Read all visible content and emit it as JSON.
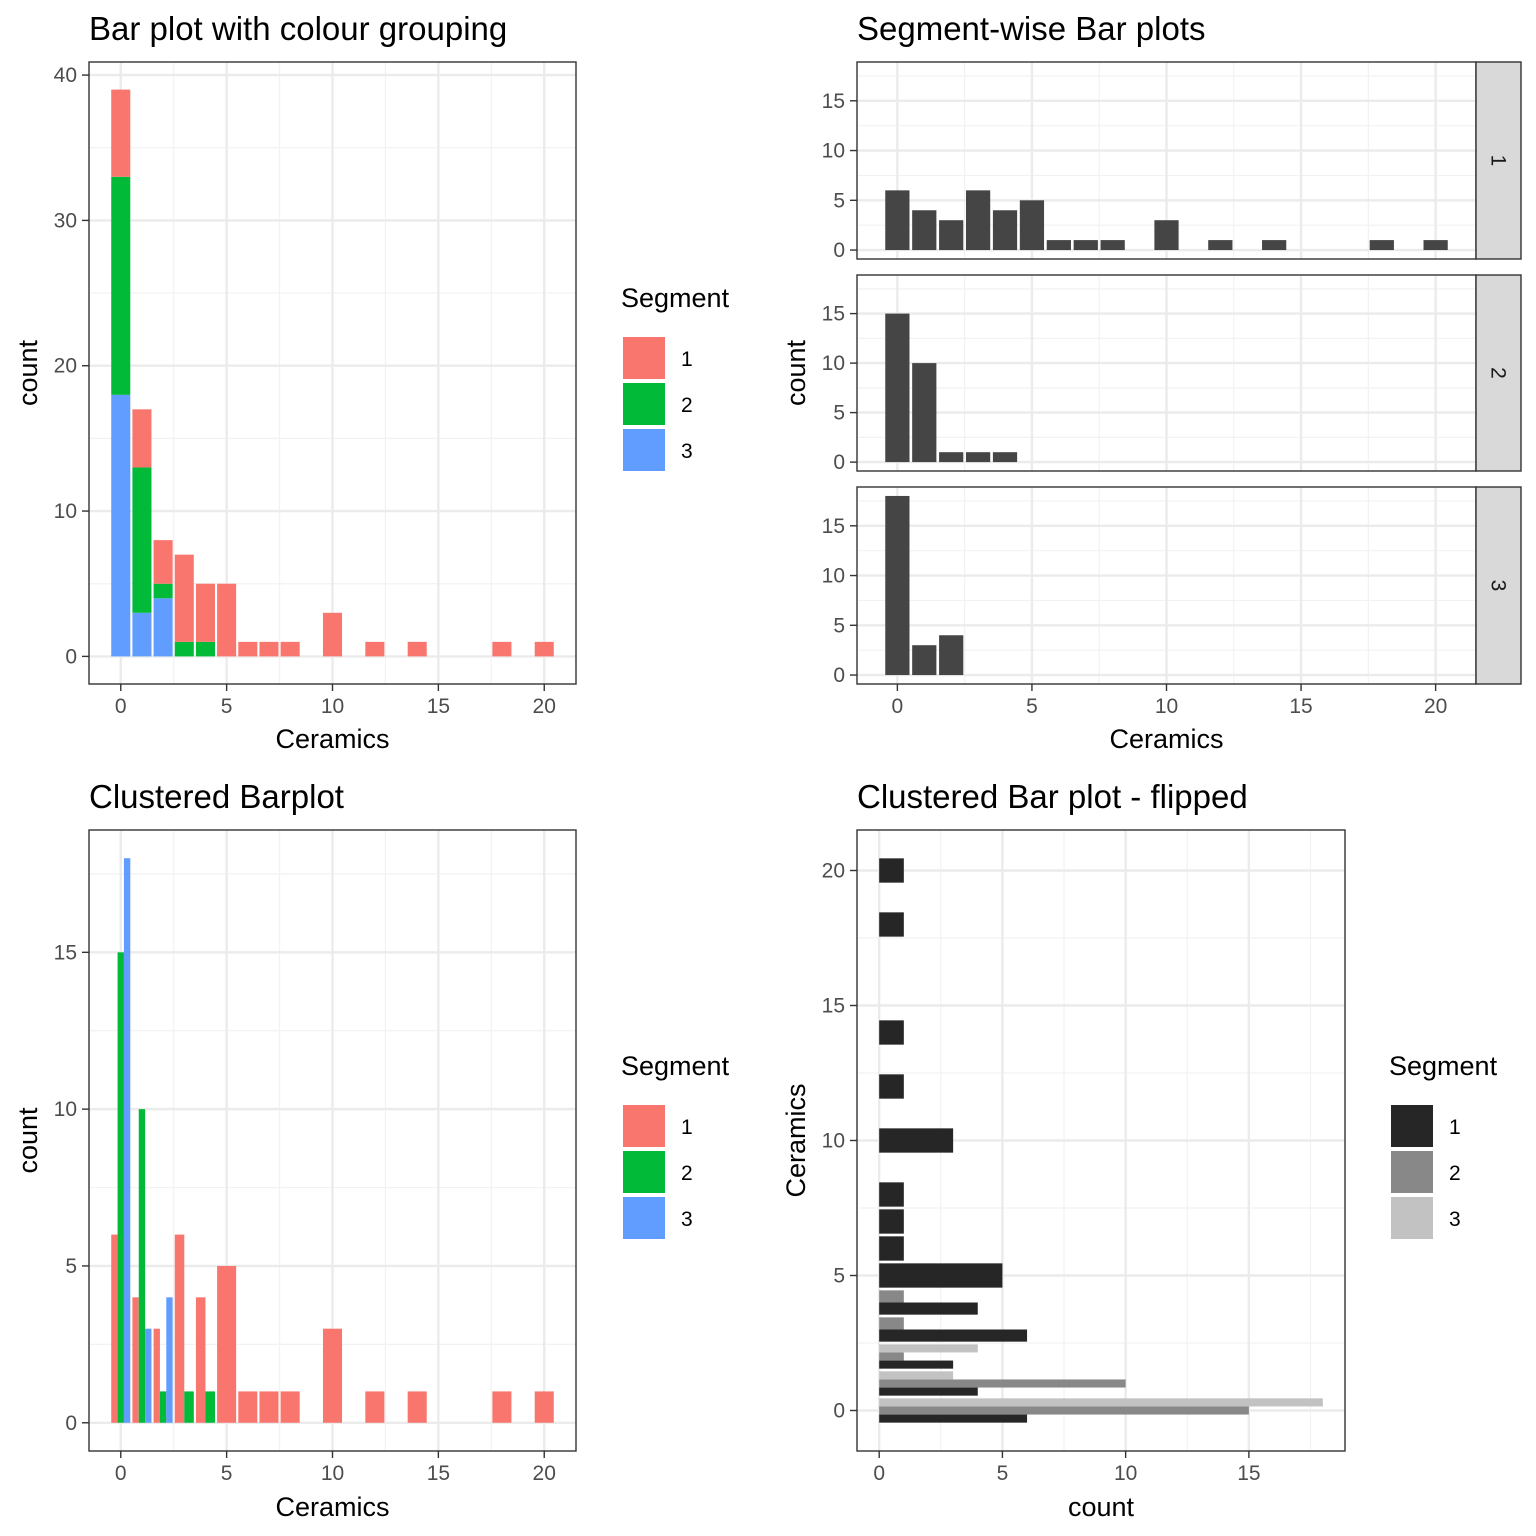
{
  "chart_data": [
    {
      "id": "p1",
      "type": "bar",
      "stacked": true,
      "title": "Bar plot with colour grouping",
      "xlabel": "Ceramics",
      "ylabel": "count",
      "xlim": [
        -1.5,
        21.5
      ],
      "ylim": [
        -1.9,
        40.9
      ],
      "x_ticks": [
        0,
        5,
        10,
        15,
        20
      ],
      "y_ticks": [
        0,
        10,
        20,
        30,
        40
      ],
      "grid": true,
      "legend": {
        "title": "Segment",
        "position": "right",
        "labels": [
          "1",
          "2",
          "3"
        ]
      },
      "colors": [
        "#F8766D",
        "#00BA38",
        "#619CFF"
      ],
      "x": [
        0,
        1,
        2,
        3,
        4,
        5,
        6,
        7,
        8,
        10,
        12,
        14,
        18,
        20
      ],
      "series": [
        {
          "name": "1",
          "values": [
            6,
            4,
            3,
            6,
            4,
            5,
            1,
            1,
            1,
            3,
            1,
            1,
            1,
            1
          ]
        },
        {
          "name": "2",
          "values": [
            15,
            10,
            1,
            1,
            1,
            0,
            0,
            0,
            0,
            0,
            0,
            0,
            0,
            0
          ]
        },
        {
          "name": "3",
          "values": [
            18,
            3,
            4,
            0,
            0,
            0,
            0,
            0,
            0,
            0,
            0,
            0,
            0,
            0
          ]
        }
      ]
    },
    {
      "id": "p2",
      "type": "bar",
      "faceted": true,
      "title": "Segment-wise Bar plots",
      "xlabel": "Ceramics",
      "ylabel": "count",
      "xlim": [
        -1.5,
        21.5
      ],
      "ylim": [
        -0.9,
        18.9
      ],
      "x_ticks": [
        0,
        5,
        10,
        15,
        20
      ],
      "y_ticks": [
        0,
        5,
        10,
        15
      ],
      "grid": true,
      "bar_color": "#454545",
      "facets": [
        {
          "label": "1",
          "x": [
            0,
            1,
            2,
            3,
            4,
            5,
            6,
            7,
            8,
            10,
            12,
            14,
            18,
            20
          ],
          "values": [
            6,
            4,
            3,
            6,
            4,
            5,
            1,
            1,
            1,
            3,
            1,
            1,
            1,
            1
          ]
        },
        {
          "label": "2",
          "x": [
            0,
            1,
            2,
            3,
            4
          ],
          "values": [
            15,
            10,
            1,
            1,
            1
          ]
        },
        {
          "label": "3",
          "x": [
            0,
            1,
            2
          ],
          "values": [
            18,
            3,
            4
          ]
        }
      ]
    },
    {
      "id": "p3",
      "type": "bar",
      "dodged": true,
      "title": "Clustered Barplot",
      "xlabel": "Ceramics",
      "ylabel": "count",
      "xlim": [
        -1.5,
        21.5
      ],
      "ylim": [
        -0.9,
        18.9
      ],
      "x_ticks": [
        0,
        5,
        10,
        15,
        20
      ],
      "y_ticks": [
        0,
        5,
        10,
        15
      ],
      "grid": true,
      "legend": {
        "title": "Segment",
        "position": "right",
        "labels": [
          "1",
          "2",
          "3"
        ]
      },
      "colors": [
        "#F8766D",
        "#00BA38",
        "#619CFF"
      ],
      "x": [
        0,
        1,
        2,
        3,
        4,
        5,
        6,
        7,
        8,
        10,
        12,
        14,
        18,
        20
      ],
      "series": [
        {
          "name": "1",
          "values": [
            6,
            4,
            3,
            6,
            4,
            5,
            1,
            1,
            1,
            3,
            1,
            1,
            1,
            1
          ]
        },
        {
          "name": "2",
          "values": [
            15,
            10,
            1,
            1,
            1,
            0,
            0,
            0,
            0,
            0,
            0,
            0,
            0,
            0
          ]
        },
        {
          "name": "3",
          "values": [
            18,
            3,
            4,
            0,
            0,
            0,
            0,
            0,
            0,
            0,
            0,
            0,
            0,
            0
          ]
        }
      ]
    },
    {
      "id": "p4",
      "type": "bar",
      "orientation": "horizontal",
      "dodged": true,
      "title": "Clustered Bar plot - flipped",
      "xlabel": "count",
      "ylabel": "Ceramics",
      "xlim": [
        -0.9,
        18.9
      ],
      "ylim": [
        -1.5,
        21.5
      ],
      "x_ticks": [
        0,
        5,
        10,
        15
      ],
      "y_ticks": [
        0,
        5,
        10,
        15,
        20
      ],
      "grid": true,
      "legend": {
        "title": "Segment",
        "position": "right",
        "labels": [
          "1",
          "2",
          "3"
        ]
      },
      "colors": [
        "#262626",
        "#888888",
        "#C2C2C2"
      ],
      "x": [
        0,
        1,
        2,
        3,
        4,
        5,
        6,
        7,
        8,
        10,
        12,
        14,
        18,
        20
      ],
      "series": [
        {
          "name": "1",
          "values": [
            6,
            4,
            3,
            6,
            4,
            5,
            1,
            1,
            1,
            3,
            1,
            1,
            1,
            1
          ]
        },
        {
          "name": "2",
          "values": [
            15,
            10,
            1,
            1,
            1,
            0,
            0,
            0,
            0,
            0,
            0,
            0,
            0,
            0
          ]
        },
        {
          "name": "3",
          "values": [
            18,
            3,
            4,
            0,
            0,
            0,
            0,
            0,
            0,
            0,
            0,
            0,
            0,
            0
          ]
        }
      ]
    }
  ]
}
